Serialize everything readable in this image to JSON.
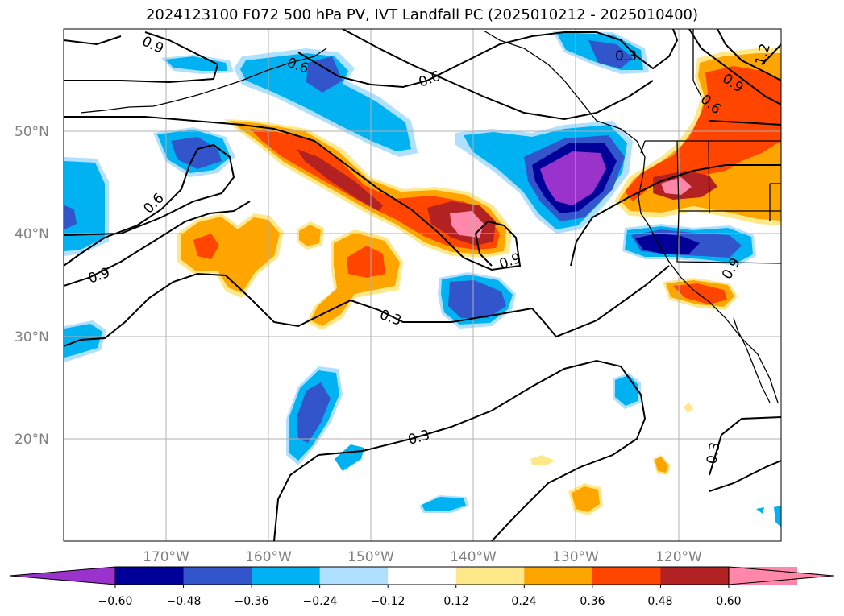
{
  "title": "2024123100 F072 500 hPa PV, IVT Landfall PC (2025010212 - 2025010400)",
  "map": {
    "lat_labels": [
      "50°N",
      "40°N",
      "30°N",
      "20°N"
    ],
    "lon_labels": [
      "170°W",
      "160°W",
      "150°W",
      "140°W",
      "130°W",
      "120°W"
    ],
    "contour_labels": [
      "0.9",
      "0.6",
      "0.6",
      "0.3",
      "1.2",
      "0.9",
      "0.6",
      "0.6",
      "0.9",
      "0.9",
      "0.3",
      "0.3",
      "0.3",
      "0.9"
    ],
    "grid": true,
    "coastlines": true
  },
  "colorbar": {
    "tick_labels": [
      "−0.60",
      "−0.48",
      "−0.36",
      "−0.24",
      "−0.12",
      "0.12",
      "0.24",
      "0.36",
      "0.48",
      "0.60"
    ],
    "colors": [
      "#9933cc",
      "#000099",
      "#3355cc",
      "#00b2f2",
      "#b0e0ff",
      "#ffffff",
      "#ffe88a",
      "#ffa500",
      "#ff4500",
      "#b22222",
      "#ff88aa",
      "#ff88aa"
    ],
    "extend": "both"
  }
}
